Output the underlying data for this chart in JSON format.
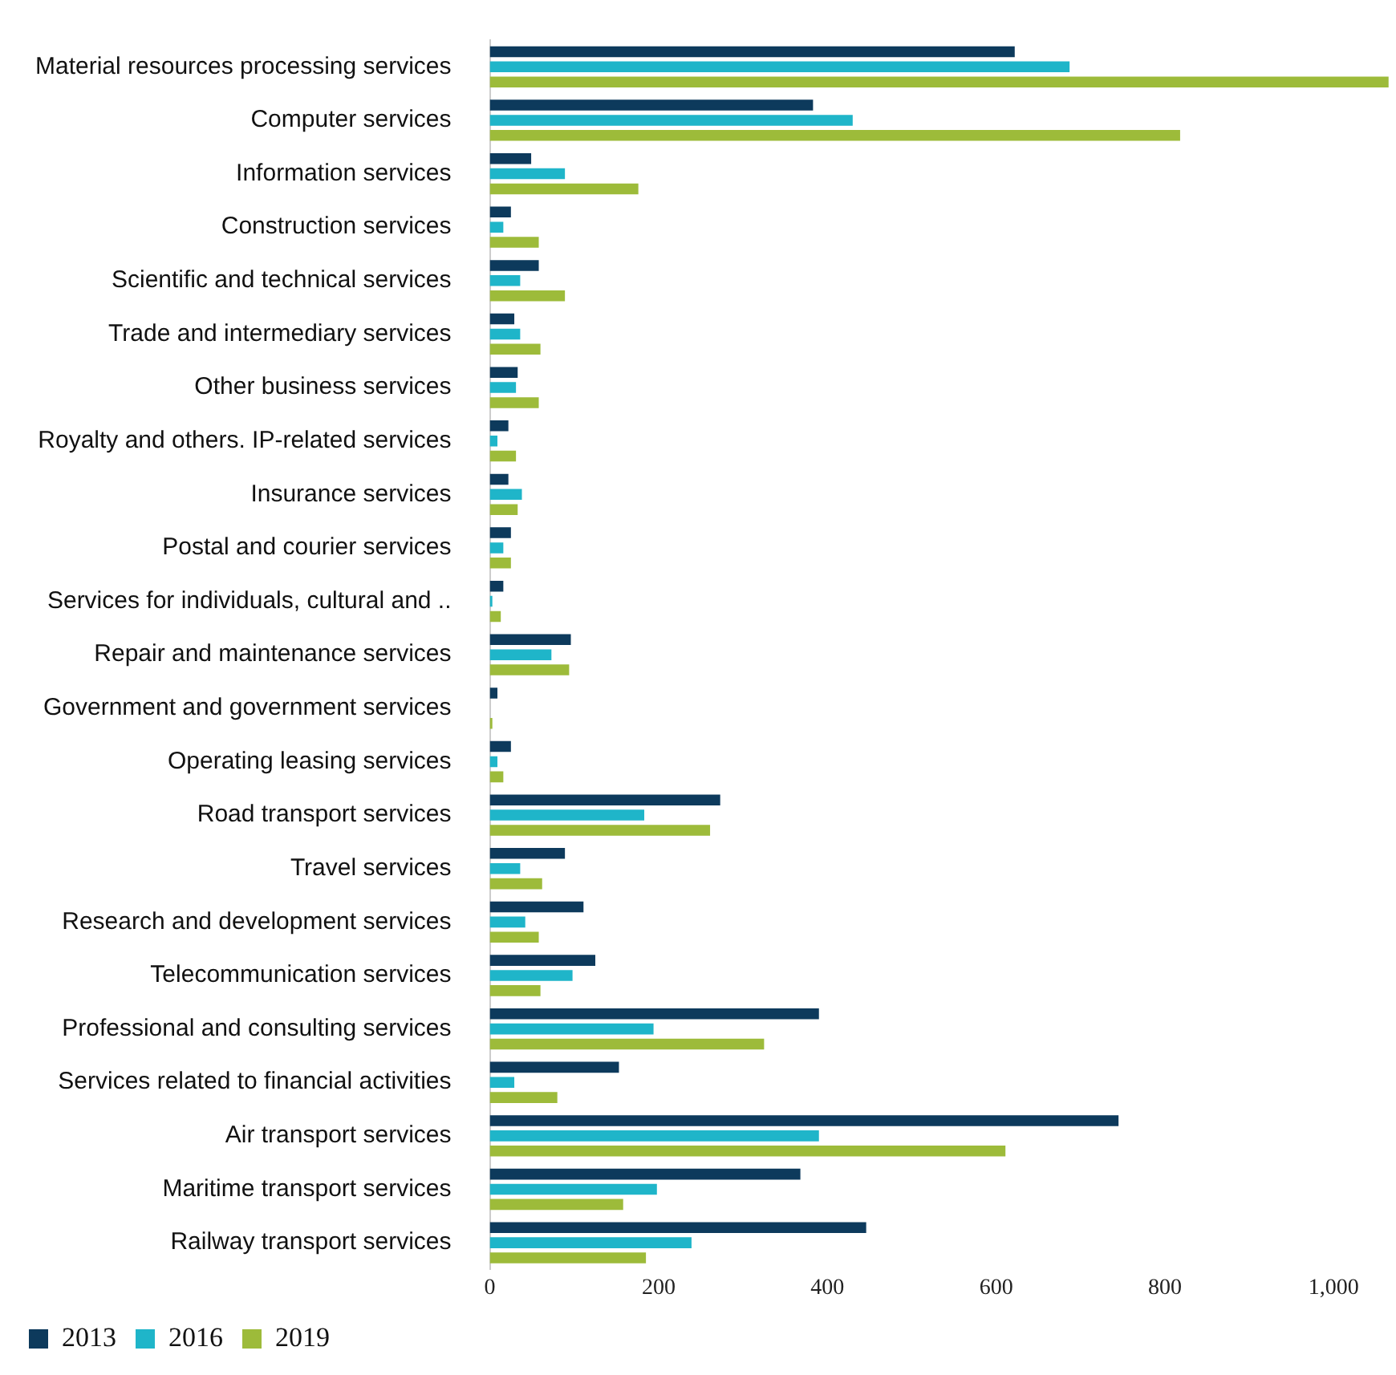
{
  "chart_data": {
    "type": "bar",
    "orientation": "horizontal",
    "categories": [
      "Material resources processing services",
      "Computer services",
      "Information services",
      "Construction services",
      "Scientific and technical services",
      "Trade and intermediary services",
      "Other business services",
      "Royalty and others. IP-related services",
      "Insurance services",
      "Postal and courier services",
      "Services for individuals, cultural and ..",
      "Repair and maintenance services",
      "Government and government services",
      "Operating leasing services",
      "Road transport services",
      "Travel services",
      "Research and development services",
      "Telecommunication services",
      "Professional and consulting services",
      "Services related to financial activities",
      "Air transport services",
      "Maritime transport services",
      "Railway transport services"
    ],
    "series": [
      {
        "name": "2013",
        "color": "#0d3a5c",
        "values": [
          622,
          383,
          49,
          25,
          58,
          29,
          33,
          22,
          22,
          25,
          16,
          96,
          9,
          25,
          273,
          89,
          111,
          125,
          390,
          153,
          745,
          368,
          446
        ]
      },
      {
        "name": "2016",
        "color": "#1fb5c9",
        "values": [
          687,
          430,
          89,
          16,
          36,
          36,
          31,
          9,
          38,
          16,
          3,
          73,
          0,
          9,
          183,
          36,
          42,
          98,
          194,
          29,
          390,
          198,
          239
        ]
      },
      {
        "name": "2019",
        "color": "#9dbb3a",
        "values": [
          1065,
          818,
          176,
          58,
          89,
          60,
          58,
          31,
          33,
          25,
          13,
          94,
          3,
          16,
          261,
          62,
          58,
          60,
          325,
          80,
          611,
          158,
          185
        ]
      }
    ],
    "xlim": [
      0,
      1070
    ],
    "xticks": [
      0,
      200,
      400,
      600,
      800,
      {
        "value": 1000,
        "label": "1,000"
      }
    ],
    "grid": false,
    "legend": "bottom"
  }
}
